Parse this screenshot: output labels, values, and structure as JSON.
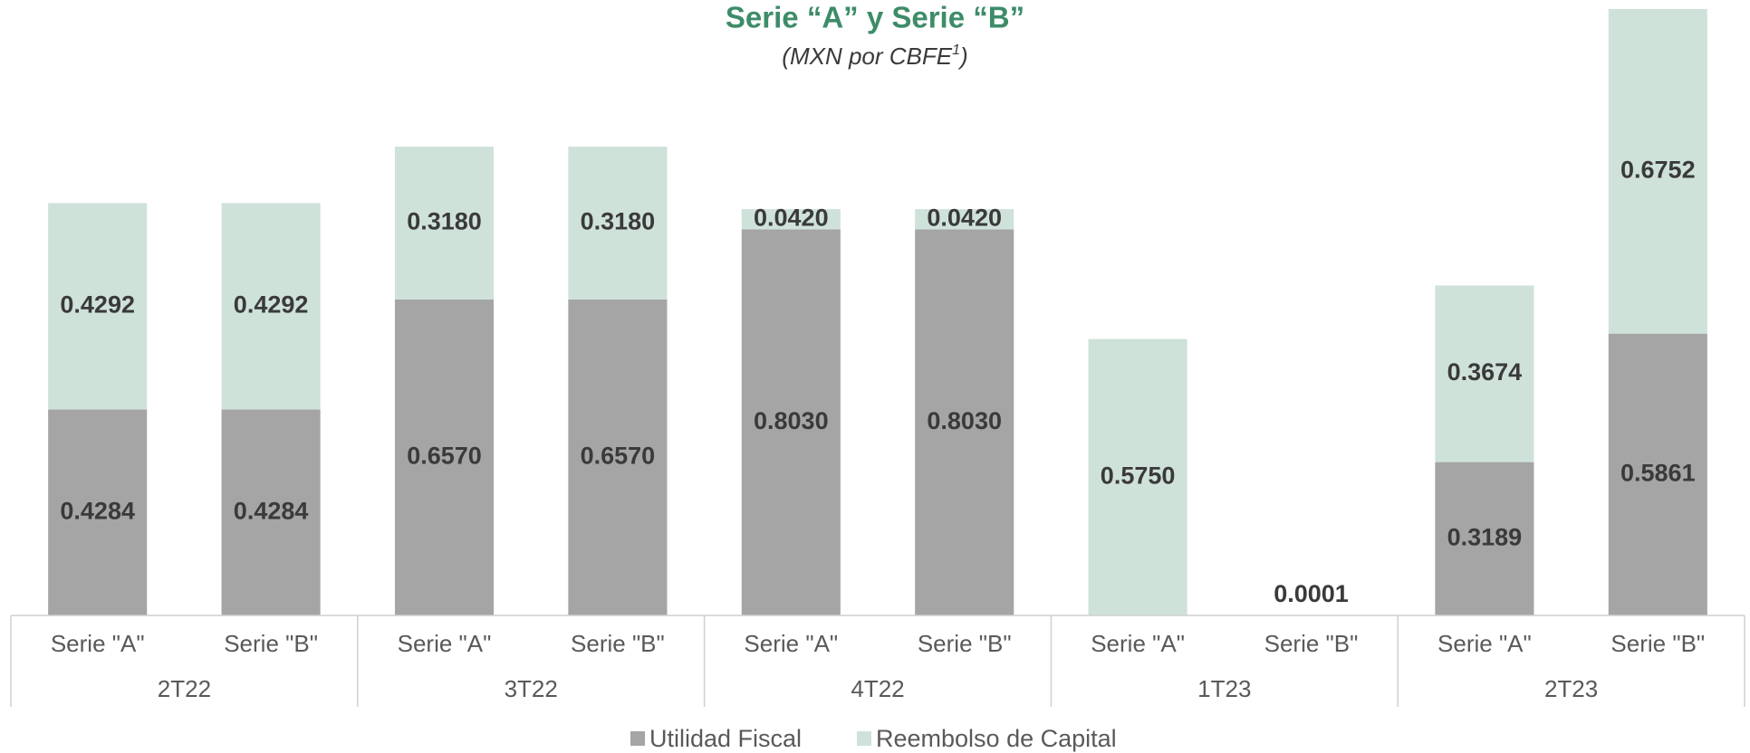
{
  "chart_data": {
    "type": "stacked-bar",
    "title": "Serie “A” y Serie “B”",
    "subtitle_parts": [
      "(MXN por CBFE",
      "1",
      ")"
    ],
    "categories": [
      "Serie \"A\"",
      "Serie \"B\"",
      "Serie \"A\"",
      "Serie \"B\"",
      "Serie \"A\"",
      "Serie \"B\"",
      "Serie \"A\"",
      "Serie \"B\"",
      "Serie \"A\"",
      "Serie \"B\""
    ],
    "groups": [
      "2T22",
      "3T22",
      "4T22",
      "1T23",
      "2T23"
    ],
    "series": [
      {
        "name": "Utilidad Fiscal",
        "color": "#a5a5a5",
        "values": [
          0.4284,
          0.4284,
          0.657,
          0.657,
          0.803,
          0.803,
          null,
          null,
          0.3189,
          0.5861
        ],
        "value_labels": [
          "0.4284",
          "0.4284",
          "0.6570",
          "0.6570",
          "0.8030",
          "0.8030",
          null,
          null,
          "0.3189",
          "0.5861"
        ]
      },
      {
        "name": "Reembolso de Capital",
        "color": "#cfe2da",
        "values": [
          0.4292,
          0.4292,
          0.318,
          0.318,
          0.042,
          0.042,
          0.575,
          0.0001,
          0.3674,
          0.6752
        ],
        "value_labels": [
          "0.4292",
          "0.4292",
          "0.3180",
          "0.3180",
          "0.0420",
          "0.0420",
          "0.5750",
          "0.0001",
          "0.3674",
          "0.6752"
        ]
      }
    ],
    "ylim": [
      0,
      1.28
    ],
    "legend": "bottom"
  }
}
